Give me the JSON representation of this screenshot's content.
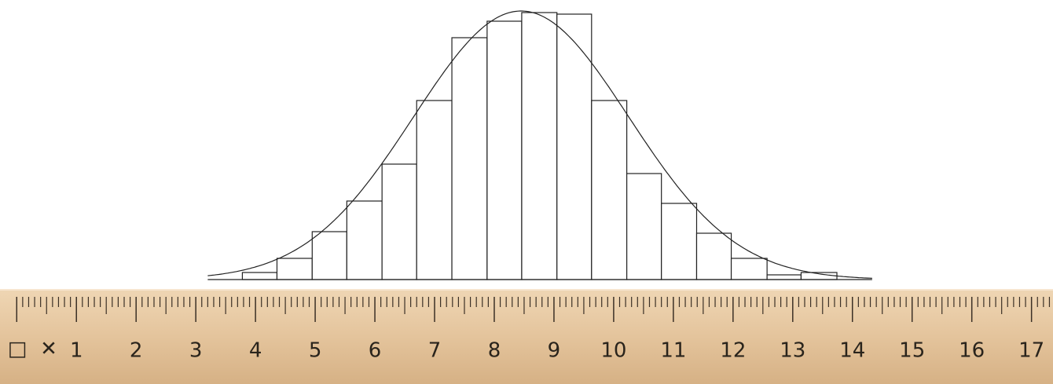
{
  "chart_data": {
    "type": "histogram",
    "bins": [
      3.2,
      3.78,
      4.36,
      4.95,
      5.53,
      6.12,
      6.7,
      7.29,
      7.88,
      8.46,
      9.05,
      9.63,
      10.22,
      10.8,
      11.39,
      11.97,
      12.57,
      13.14,
      13.74,
      14.33
    ],
    "values": [
      0,
      9,
      27,
      61,
      100,
      147,
      228,
      308,
      329,
      340,
      338,
      228,
      135,
      97,
      59,
      27,
      6,
      9,
      0
    ],
    "curve": {
      "mean": 8.45,
      "sd": 1.8,
      "peak": 342
    },
    "xlim": [
      -0.28,
      17.36
    ],
    "xticks": [
      1,
      2,
      3,
      4,
      5,
      6,
      7,
      8,
      9,
      10,
      11,
      12,
      13,
      14,
      15,
      16,
      17
    ],
    "origin_marks": [
      "□",
      "✕"
    ]
  }
}
